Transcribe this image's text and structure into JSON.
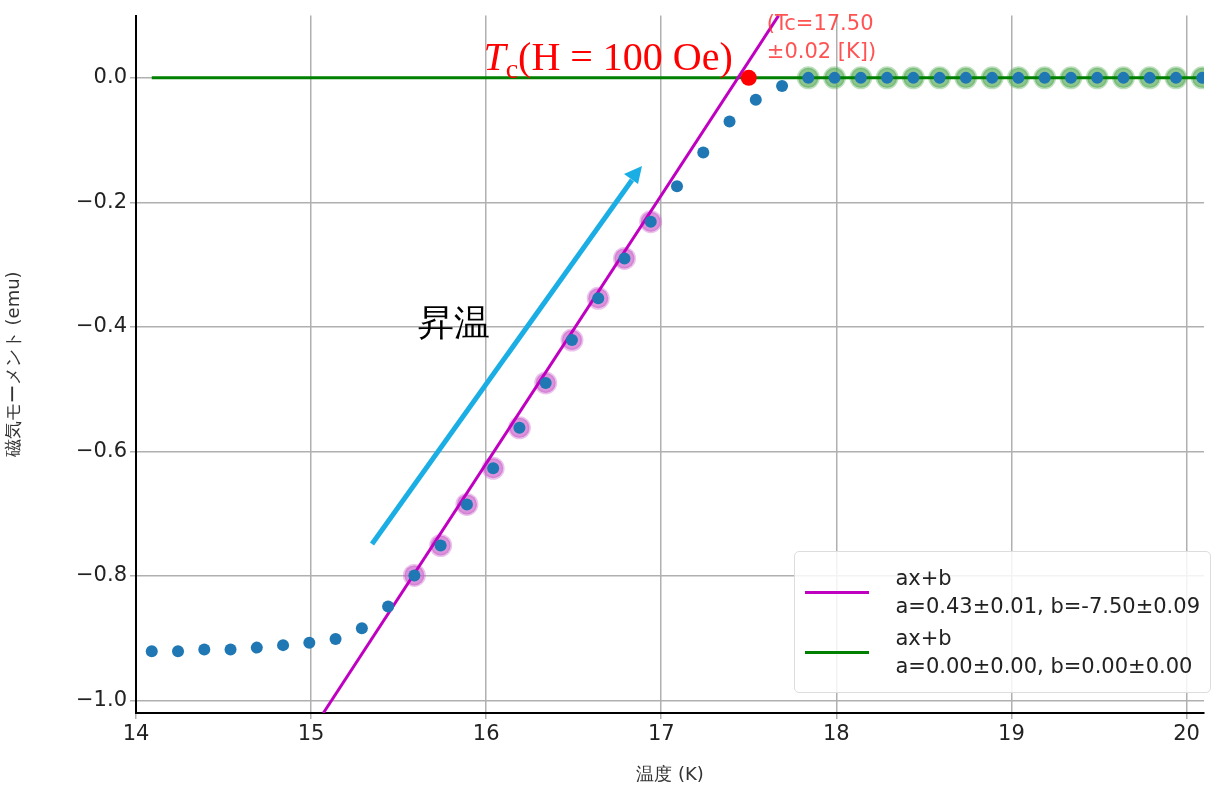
{
  "chart_data": {
    "type": "scatter",
    "xlabel": "温度 (K)",
    "ylabel": "磁気モーメント (emu)",
    "xlim": [
      14,
      20.1
    ],
    "ylim": [
      -1.02,
      0.1
    ],
    "xticks": [
      14,
      15,
      16,
      17,
      18,
      19,
      20
    ],
    "yticks": [
      {
        "value": 0,
        "label": "0.0"
      },
      {
        "value": -0.2,
        "label": "−0.2"
      },
      {
        "value": -0.4,
        "label": "−0.4"
      },
      {
        "value": -0.6,
        "label": "−0.6"
      },
      {
        "value": -0.8,
        "label": "−0.8"
      },
      {
        "value": -1.0,
        "label": "−1.0"
      }
    ],
    "grid": true,
    "legend": "bottom right",
    "series": [
      {
        "type": "scatter",
        "marker": "circle",
        "color": "#cc66cc",
        "x": [
          15.59,
          15.74,
          15.89,
          16.04,
          16.19,
          16.34,
          16.49,
          16.64,
          16.79,
          16.94
        ],
        "values": [
          -0.799,
          -0.751,
          -0.685,
          -0.627,
          -0.562,
          -0.49,
          -0.421,
          -0.354,
          -0.29,
          -0.231
        ]
      },
      {
        "type": "scatter",
        "marker": "circle",
        "color": "#5cae5c",
        "x": [
          17.84,
          17.99,
          18.14,
          18.29,
          18.44,
          18.59,
          18.74,
          18.89,
          19.04,
          19.19,
          19.34,
          19.49,
          19.64,
          19.79,
          19.94,
          20.09
        ],
        "values": [
          0,
          0,
          0,
          0,
          0,
          0,
          0,
          0,
          0,
          0,
          0,
          0,
          0,
          0,
          0,
          0
        ]
      },
      {
        "type": "scatter",
        "marker": "circle",
        "color": "#1f77b4",
        "x": [
          14.09,
          14.24,
          14.39,
          14.54,
          14.69,
          14.84,
          14.99,
          15.14,
          15.29,
          15.44,
          15.59,
          15.74,
          15.89,
          16.04,
          16.19,
          16.34,
          16.49,
          16.64,
          16.79,
          16.94,
          17.09,
          17.24,
          17.39,
          17.54,
          17.69,
          17.84,
          17.99,
          18.14,
          18.29,
          18.44,
          18.59,
          18.74,
          18.89,
          19.04,
          19.19,
          19.34,
          19.49,
          19.64,
          19.79,
          19.94,
          20.09
        ],
        "values": [
          -0.921,
          -0.921,
          -0.918,
          -0.918,
          -0.915,
          -0.911,
          -0.907,
          -0.901,
          -0.884,
          -0.849,
          -0.799,
          -0.751,
          -0.685,
          -0.627,
          -0.562,
          -0.49,
          -0.421,
          -0.354,
          -0.29,
          -0.231,
          -0.174,
          -0.12,
          -0.07,
          -0.035,
          -0.013,
          0,
          0,
          0,
          0,
          0,
          0,
          0,
          0,
          0,
          0,
          0,
          0,
          0,
          0,
          0,
          0
        ]
      },
      {
        "type": "line",
        "marker": "none",
        "name": "ax+b\na=0.43±0.01, b=-7.50±0.09",
        "color": "#c000c0",
        "x": [
          15.07,
          17.67
        ],
        "values": [
          -1.02,
          0.1
        ]
      },
      {
        "type": "line",
        "marker": "none",
        "name": "ax+b\na=0.00±0.00, b=0.00±0.00",
        "color": "#008000",
        "x": [
          14.09,
          20.1
        ],
        "values": [
          0,
          0
        ]
      },
      {
        "type": "scatter",
        "marker": "circle",
        "color": "#ff0000",
        "x": [
          17.5
        ],
        "values": [
          0
        ]
      }
    ],
    "annotations": [
      "昇温",
      {
        "text": "T$_{c}$(H = 100 Oe)",
        "x": 17.5,
        "y": 0
      },
      {
        "text": "(Tc=17.50\n±0.02 [K])",
        "x": 17.5,
        "y": 0
      }
    ]
  }
}
